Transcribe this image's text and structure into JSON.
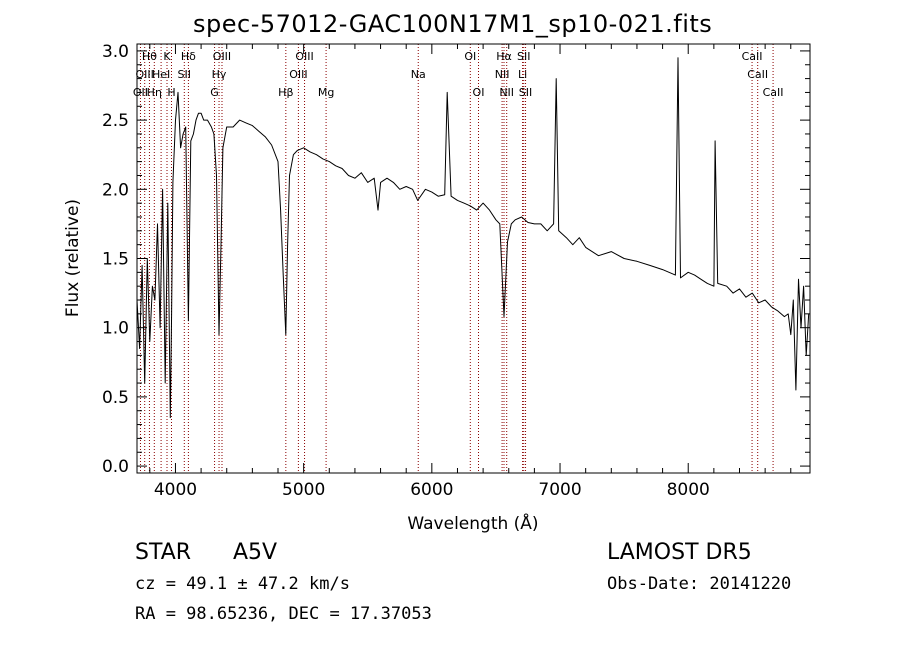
{
  "chart_data": {
    "type": "line",
    "title": "spec-57012-GAC100N17M1_sp10-021.fits",
    "xlabel": "Wavelength (Å)",
    "ylabel": "Flux (relative)",
    "xlim": [
      3700,
      8950
    ],
    "ylim": [
      -0.05,
      3.05
    ],
    "xticks": [
      {
        "value": 4000,
        "label": "4000"
      },
      {
        "value": 5000,
        "label": "5000"
      },
      {
        "value": 6000,
        "label": "6000"
      },
      {
        "value": 7000,
        "label": "7000"
      },
      {
        "value": 8000,
        "label": "8000"
      }
    ],
    "yticks": [
      {
        "value": 0.0,
        "label": "0.0"
      },
      {
        "value": 0.5,
        "label": "0.5"
      },
      {
        "value": 1.0,
        "label": "1.0"
      },
      {
        "value": 1.5,
        "label": "1.5"
      },
      {
        "value": 2.0,
        "label": "2.0"
      },
      {
        "value": 2.5,
        "label": "2.5"
      },
      {
        "value": 3.0,
        "label": "3.0"
      }
    ],
    "grid": false,
    "line_color": "#000000",
    "marker_color": "#8b0000",
    "series": [
      {
        "x": [
          3700,
          3720,
          3740,
          3760,
          3780,
          3800,
          3820,
          3840,
          3860,
          3880,
          3900,
          3920,
          3940,
          3960,
          3970,
          3980,
          4000,
          4020,
          4040,
          4060,
          4080,
          4101,
          4120,
          4140,
          4160,
          4180,
          4200,
          4220,
          4250,
          4280,
          4300,
          4320,
          4340,
          4355,
          4370,
          4400,
          4450,
          4500,
          4550,
          4600,
          4650,
          4700,
          4750,
          4800,
          4820,
          4840,
          4861,
          4875,
          4890,
          4920,
          4950,
          5000,
          5050,
          5100,
          5150,
          5200,
          5250,
          5300,
          5350,
          5400,
          5450,
          5500,
          5550,
          5580,
          5600,
          5650,
          5700,
          5750,
          5800,
          5850,
          5890,
          5950,
          6000,
          6050,
          6100,
          6120,
          6150,
          6200,
          6250,
          6300,
          6350,
          6400,
          6450,
          6500,
          6530,
          6563,
          6590,
          6620,
          6650,
          6700,
          6750,
          6800,
          6850,
          6900,
          6950,
          6970,
          6990,
          7050,
          7100,
          7150,
          7200,
          7300,
          7400,
          7500,
          7600,
          7700,
          7800,
          7850,
          7900,
          7920,
          7940,
          8000,
          8050,
          8100,
          8150,
          8200,
          8210,
          8230,
          8300,
          8350,
          8400,
          8450,
          8500,
          8550,
          8600,
          8650,
          8700,
          8750,
          8780,
          8800,
          8820,
          8840,
          8860,
          8880,
          8900,
          8920,
          8940
        ],
        "y": [
          1.2,
          0.85,
          1.45,
          0.6,
          1.5,
          0.9,
          1.3,
          1.2,
          1.75,
          1.0,
          2.0,
          0.6,
          1.9,
          0.35,
          1.1,
          2.05,
          2.5,
          2.7,
          2.3,
          2.4,
          2.45,
          1.05,
          2.35,
          2.4,
          2.5,
          2.55,
          2.55,
          2.5,
          2.5,
          2.45,
          2.4,
          2.1,
          0.95,
          1.6,
          2.3,
          2.45,
          2.45,
          2.5,
          2.48,
          2.46,
          2.42,
          2.38,
          2.32,
          2.2,
          1.85,
          1.4,
          0.95,
          1.6,
          2.1,
          2.25,
          2.28,
          2.3,
          2.27,
          2.25,
          2.22,
          2.2,
          2.17,
          2.15,
          2.1,
          2.08,
          2.12,
          2.05,
          2.08,
          1.85,
          2.05,
          2.08,
          2.05,
          2.0,
          2.02,
          2.0,
          1.92,
          2.0,
          1.98,
          1.95,
          1.96,
          2.7,
          1.95,
          1.92,
          1.9,
          1.88,
          1.85,
          1.9,
          1.85,
          1.78,
          1.75,
          1.08,
          1.62,
          1.75,
          1.78,
          1.8,
          1.76,
          1.75,
          1.75,
          1.7,
          1.75,
          2.8,
          1.7,
          1.65,
          1.6,
          1.65,
          1.58,
          1.52,
          1.55,
          1.5,
          1.48,
          1.45,
          1.42,
          1.4,
          1.38,
          2.95,
          1.36,
          1.4,
          1.38,
          1.35,
          1.32,
          1.3,
          2.35,
          1.32,
          1.3,
          1.25,
          1.28,
          1.22,
          1.25,
          1.18,
          1.2,
          1.15,
          1.12,
          1.08,
          1.1,
          0.95,
          1.2,
          0.55,
          1.35,
          1.0,
          1.3,
          0.8,
          1.1
        ]
      }
    ],
    "lines": [
      {
        "label": "OII",
        "x": 3727,
        "row": 3
      },
      {
        "label": "Hη",
        "x": 3835,
        "row": 3
      },
      {
        "label": "Hθ",
        "x": 3797,
        "row": 1
      },
      {
        "label": "OIII",
        "x": 3760,
        "row": 2
      },
      {
        "label": "HeI",
        "x": 3888,
        "row": 2
      },
      {
        "label": "K",
        "x": 3934,
        "row": 1
      },
      {
        "label": "H",
        "x": 3969,
        "row": 3
      },
      {
        "label": "SII",
        "x": 4069,
        "row": 2
      },
      {
        "label": "Hδ",
        "x": 4101,
        "row": 1
      },
      {
        "label": "G",
        "x": 4305,
        "row": 3
      },
      {
        "label": "Hγ",
        "x": 4340,
        "row": 2
      },
      {
        "label": "OIII",
        "x": 4363,
        "row": 1
      },
      {
        "label": "Hβ",
        "x": 4861,
        "row": 3
      },
      {
        "label": "OIII",
        "x": 4959,
        "row": 2
      },
      {
        "label": "OIII",
        "x": 5007,
        "row": 1
      },
      {
        "label": "Mg",
        "x": 5175,
        "row": 3
      },
      {
        "label": "Na",
        "x": 5894,
        "row": 2
      },
      {
        "label": "OI",
        "x": 6300,
        "row": 1
      },
      {
        "label": "OI",
        "x": 6364,
        "row": 3
      },
      {
        "label": "Hα",
        "x": 6563,
        "row": 1
      },
      {
        "label": "NII",
        "x": 6548,
        "row": 2
      },
      {
        "label": "NII",
        "x": 6584,
        "row": 3
      },
      {
        "label": "SII",
        "x": 6717,
        "row": 1
      },
      {
        "label": "Li",
        "x": 6708,
        "row": 2
      },
      {
        "label": "SII",
        "x": 6731,
        "row": 3
      },
      {
        "label": "CaII",
        "x": 8498,
        "row": 1
      },
      {
        "label": "CaII",
        "x": 8542,
        "row": 2
      },
      {
        "label": "CaII",
        "x": 8662,
        "row": 3
      }
    ]
  },
  "info": {
    "object_type": "STAR",
    "subclass": "A5V",
    "survey": "LAMOST  DR5",
    "cz": "cz = 49.1 ± 47.2 km/s",
    "obs_date": "Obs-Date: 20141220",
    "coords": "RA =  98.65236, DEC =  17.37053"
  }
}
